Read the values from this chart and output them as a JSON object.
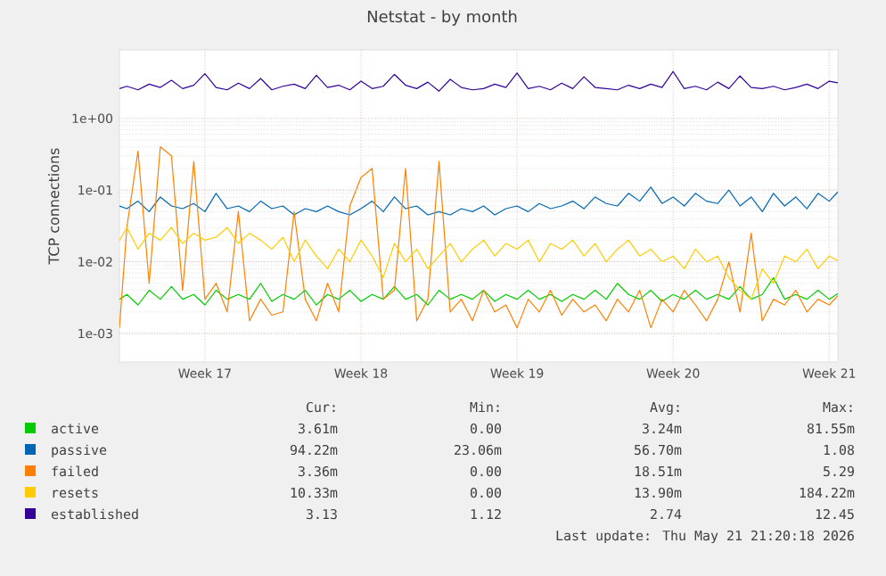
{
  "chart_data": {
    "type": "line",
    "title": "Netstat - by month",
    "ylabel": "TCP connections",
    "log": true,
    "grid": true,
    "legend": "bottom",
    "xlim": [
      "2026-04-19T16:00",
      "2026-05-21T21:20"
    ],
    "xticks": [
      {
        "value": "2026-04-23T12:00",
        "label": "Week 17"
      },
      {
        "value": "2026-04-30T12:00",
        "label": "Week 18"
      },
      {
        "value": "2026-05-07T12:00",
        "label": "Week 19"
      },
      {
        "value": "2026-05-14T12:00",
        "label": "Week 20"
      },
      {
        "value": "2026-05-21T12:00",
        "label": "Week 21"
      }
    ],
    "ylim": [
      0.0004,
      9
    ],
    "yticks": [
      {
        "value": 0.001,
        "label": "1e-03"
      },
      {
        "value": 0.01,
        "label": "1e-02"
      },
      {
        "value": 0.1,
        "label": "1e-01"
      },
      {
        "value": 1,
        "label": "1e+00"
      }
    ],
    "x": [
      "2026-04-19T16:00",
      "2026-04-20T00:00",
      "2026-04-20T12:00",
      "2026-04-21T00:00",
      "2026-04-21T12:00",
      "2026-04-22T00:00",
      "2026-04-22T12:00",
      "2026-04-23T00:00",
      "2026-04-23T12:00",
      "2026-04-24T00:00",
      "2026-04-24T12:00",
      "2026-04-25T00:00",
      "2026-04-25T12:00",
      "2026-04-26T00:00",
      "2026-04-26T12:00",
      "2026-04-27T00:00",
      "2026-04-27T12:00",
      "2026-04-28T00:00",
      "2026-04-28T12:00",
      "2026-04-29T00:00",
      "2026-04-29T12:00",
      "2026-04-30T00:00",
      "2026-04-30T12:00",
      "2026-05-01T00:00",
      "2026-05-01T12:00",
      "2026-05-02T00:00",
      "2026-05-02T12:00",
      "2026-05-03T00:00",
      "2026-05-03T12:00",
      "2026-05-04T00:00",
      "2026-05-04T12:00",
      "2026-05-05T00:00",
      "2026-05-05T12:00",
      "2026-05-06T00:00",
      "2026-05-06T12:00",
      "2026-05-07T00:00",
      "2026-05-07T12:00",
      "2026-05-08T00:00",
      "2026-05-08T12:00",
      "2026-05-09T00:00",
      "2026-05-09T12:00",
      "2026-05-10T00:00",
      "2026-05-10T12:00",
      "2026-05-11T00:00",
      "2026-05-11T12:00",
      "2026-05-12T00:00",
      "2026-05-12T12:00",
      "2026-05-13T00:00",
      "2026-05-13T12:00",
      "2026-05-14T00:00",
      "2026-05-14T12:00",
      "2026-05-15T00:00",
      "2026-05-15T12:00",
      "2026-05-16T00:00",
      "2026-05-16T12:00",
      "2026-05-17T00:00",
      "2026-05-17T12:00",
      "2026-05-18T00:00",
      "2026-05-18T12:00",
      "2026-05-19T00:00",
      "2026-05-19T12:00",
      "2026-05-20T00:00",
      "2026-05-20T12:00",
      "2026-05-21T00:00",
      "2026-05-21T12:00",
      "2026-05-21T21:20"
    ],
    "series": [
      {
        "name": "active",
        "color": "#00cc00",
        "values": [
          0.003,
          0.0035,
          0.0025,
          0.004,
          0.003,
          0.0045,
          0.003,
          0.0035,
          0.0025,
          0.004,
          0.003,
          0.0035,
          0.003,
          0.005,
          0.0028,
          0.0035,
          0.003,
          0.004,
          0.0025,
          0.0035,
          0.003,
          0.004,
          0.0028,
          0.0035,
          0.003,
          0.0045,
          0.003,
          0.0035,
          0.0025,
          0.004,
          0.003,
          0.0035,
          0.003,
          0.004,
          0.0028,
          0.0035,
          0.003,
          0.004,
          0.003,
          0.0035,
          0.0028,
          0.0035,
          0.003,
          0.004,
          0.003,
          0.005,
          0.0035,
          0.003,
          0.004,
          0.0028,
          0.0035,
          0.003,
          0.004,
          0.003,
          0.0035,
          0.003,
          0.0045,
          0.003,
          0.0035,
          0.006,
          0.003,
          0.0035,
          0.003,
          0.004,
          0.003,
          0.00361
        ]
      },
      {
        "name": "passive",
        "color": "#0066b3",
        "values": [
          0.06,
          0.055,
          0.07,
          0.05,
          0.08,
          0.06,
          0.055,
          0.065,
          0.05,
          0.09,
          0.055,
          0.06,
          0.05,
          0.07,
          0.055,
          0.06,
          0.045,
          0.055,
          0.05,
          0.06,
          0.05,
          0.045,
          0.055,
          0.07,
          0.05,
          0.08,
          0.055,
          0.06,
          0.045,
          0.05,
          0.045,
          0.055,
          0.05,
          0.06,
          0.045,
          0.055,
          0.06,
          0.05,
          0.065,
          0.055,
          0.06,
          0.07,
          0.055,
          0.08,
          0.065,
          0.06,
          0.09,
          0.07,
          0.11,
          0.065,
          0.08,
          0.06,
          0.09,
          0.07,
          0.065,
          0.1,
          0.06,
          0.08,
          0.05,
          0.09,
          0.06,
          0.08,
          0.055,
          0.09,
          0.07,
          0.09422
        ]
      },
      {
        "name": "failed",
        "color": "#ff8000",
        "values": [
          0.0012,
          0.03,
          0.35,
          0.005,
          0.4,
          0.3,
          0.004,
          0.25,
          0.003,
          0.005,
          0.002,
          0.05,
          0.0015,
          0.003,
          0.0018,
          0.002,
          0.05,
          0.003,
          0.0015,
          0.005,
          0.002,
          0.06,
          0.15,
          0.2,
          0.003,
          0.004,
          0.2,
          0.0015,
          0.003,
          0.25,
          0.002,
          0.003,
          0.0015,
          0.004,
          0.002,
          0.0025,
          0.0012,
          0.003,
          0.002,
          0.004,
          0.0018,
          0.003,
          0.002,
          0.0025,
          0.0015,
          0.003,
          0.002,
          0.004,
          0.0012,
          0.003,
          0.002,
          0.004,
          0.0025,
          0.0015,
          0.003,
          0.01,
          0.002,
          0.025,
          0.0015,
          0.003,
          0.0025,
          0.004,
          0.002,
          0.003,
          0.0025,
          0.00336
        ]
      },
      {
        "name": "resets",
        "color": "#ffcc00",
        "values": [
          0.02,
          0.03,
          0.015,
          0.025,
          0.02,
          0.03,
          0.018,
          0.025,
          0.02,
          0.022,
          0.03,
          0.018,
          0.025,
          0.02,
          0.015,
          0.022,
          0.01,
          0.02,
          0.012,
          0.008,
          0.015,
          0.01,
          0.02,
          0.012,
          0.006,
          0.018,
          0.01,
          0.015,
          0.008,
          0.012,
          0.018,
          0.01,
          0.015,
          0.02,
          0.012,
          0.018,
          0.015,
          0.02,
          0.01,
          0.018,
          0.015,
          0.02,
          0.012,
          0.018,
          0.01,
          0.015,
          0.02,
          0.012,
          0.015,
          0.01,
          0.012,
          0.008,
          0.015,
          0.01,
          0.012,
          0.006,
          0.004,
          0.003,
          0.008,
          0.005,
          0.012,
          0.01,
          0.015,
          0.008,
          0.012,
          0.01033
        ]
      },
      {
        "name": "established",
        "color": "#330099",
        "values": [
          2.6,
          2.8,
          2.5,
          3.0,
          2.7,
          3.4,
          2.6,
          2.9,
          4.2,
          2.7,
          2.5,
          3.1,
          2.6,
          3.6,
          2.5,
          2.8,
          3.0,
          2.6,
          4.0,
          2.7,
          2.9,
          2.5,
          3.3,
          2.6,
          2.8,
          4.1,
          2.9,
          2.6,
          3.2,
          2.4,
          3.5,
          2.7,
          2.5,
          2.6,
          3.0,
          2.7,
          4.3,
          2.6,
          2.8,
          2.5,
          3.1,
          2.6,
          3.8,
          2.7,
          2.6,
          2.5,
          2.9,
          2.6,
          3.0,
          2.7,
          4.5,
          2.6,
          2.8,
          2.5,
          3.2,
          2.6,
          3.9,
          2.7,
          2.6,
          2.8,
          2.5,
          2.7,
          3.0,
          2.6,
          3.3,
          3.13
        ]
      }
    ],
    "annotations": [
      "Cur:",
      "Min:",
      "Avg:",
      "Max:",
      "3.61m",
      "0.00",
      "3.24m",
      "81.55m",
      "94.22m",
      "23.06m",
      "56.70m",
      "1.08",
      "3.36m",
      "0.00",
      "18.51m",
      "5.29",
      "10.33m",
      "0.00",
      "13.90m",
      "184.22m",
      "3.13",
      "1.12",
      "2.74",
      "12.45",
      "Last update: Thu May 21 21:20:18 2026"
    ]
  }
}
